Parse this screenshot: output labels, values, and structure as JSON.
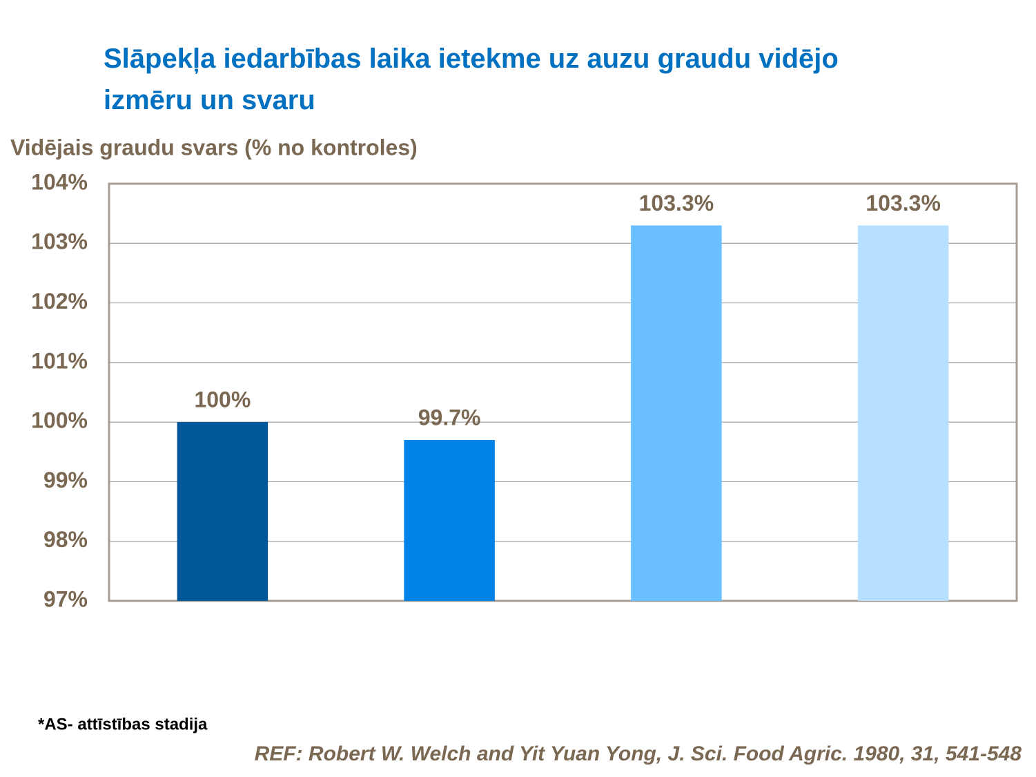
{
  "chart_data": {
    "type": "bar",
    "title": "Slāpekļa iedarbības laika ietekme uz auzu graudu vidējo izmēru un svaru",
    "y_label": "Vidējais graudu svars (% no kontroles)",
    "categories": [
      null,
      null,
      null,
      null
    ],
    "values": [
      100,
      99.7,
      103.3,
      103.3
    ],
    "value_labels": [
      "100%",
      "99.7%",
      "103.3%",
      "103.3%"
    ],
    "colors": [
      "#00579a",
      "#0082e6",
      "#69bfff",
      "#b7dfff"
    ],
    "ylim": [
      97,
      104
    ],
    "yticks": [
      {
        "value": 97,
        "label": "97%"
      },
      {
        "value": 98,
        "label": "98%"
      },
      {
        "value": 99,
        "label": "99%"
      },
      {
        "value": 100,
        "label": "100%"
      },
      {
        "value": 101,
        "label": "101%"
      },
      {
        "value": 102,
        "label": "102%"
      },
      {
        "value": 103,
        "label": "103%"
      },
      {
        "value": 104,
        "label": "104%"
      }
    ],
    "grid": true,
    "footnote": "*AS- attīstības stadija",
    "reference": "REF: Robert W. Welch and Yit Yuan Yong, J. Sci. Food Agric. 1980, 31, 541-548"
  }
}
